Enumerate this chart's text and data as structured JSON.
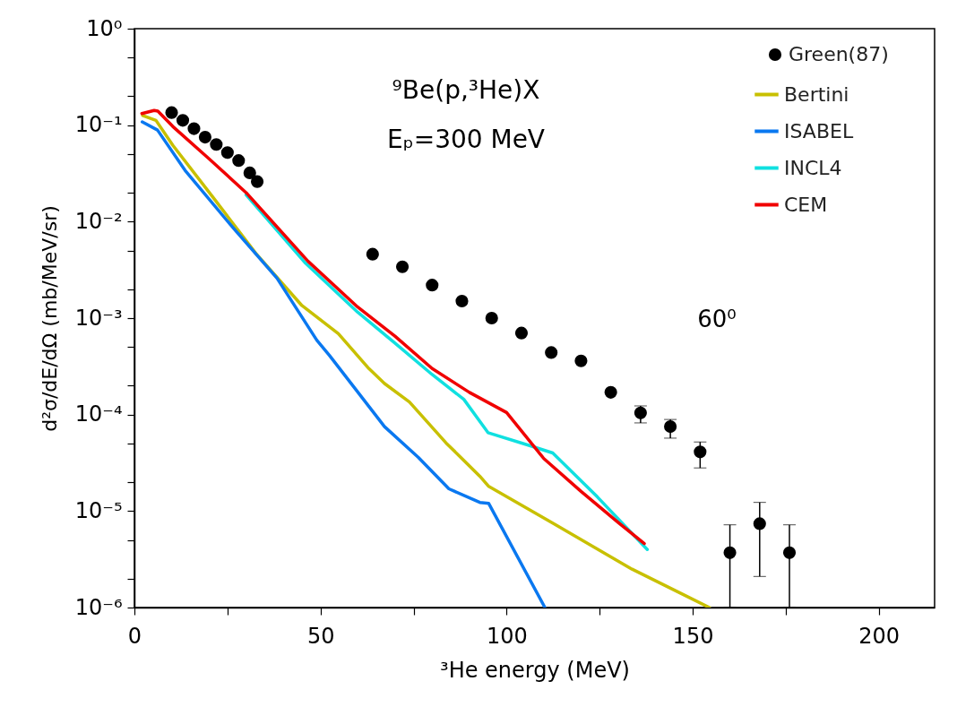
{
  "chart_data": {
    "type": "line",
    "xlabel": "³He energy (MeV)",
    "ylabel": "d²σ/dE/dΩ (mb/MeV/sr)",
    "annotations": [
      "⁹Be(p,³He)X",
      "Eₚ=300 MeV",
      "60⁰"
    ],
    "log": "y",
    "xlim": [
      0,
      215
    ],
    "xticks": [
      0,
      {
        "value": 25,
        "label": null
      },
      50,
      {
        "value": 75,
        "label": null
      },
      100,
      {
        "value": 125,
        "label": null
      },
      150,
      {
        "value": 175,
        "label": null
      },
      200
    ],
    "ylim": [
      1e-06,
      1
    ],
    "yticks": [
      {
        "value": 1,
        "label": "10⁰"
      },
      {
        "value": 0.5,
        "label": null
      },
      {
        "value": 0.2,
        "label": null
      },
      {
        "value": 0.1,
        "label": "10⁻¹"
      },
      {
        "value": 0.05,
        "label": null
      },
      {
        "value": 0.02,
        "label": null
      },
      {
        "value": 0.01,
        "label": "10⁻²"
      },
      {
        "value": 0.005,
        "label": null
      },
      {
        "value": 0.002,
        "label": null
      },
      {
        "value": 0.001,
        "label": "10⁻³"
      },
      {
        "value": 0.0005,
        "label": null
      },
      {
        "value": 0.0002,
        "label": null
      },
      {
        "value": 0.0001,
        "label": "10⁻⁴"
      },
      {
        "value": 5e-05,
        "label": null
      },
      {
        "value": 2e-05,
        "label": null
      },
      {
        "value": 1e-05,
        "label": "10⁻⁵"
      },
      {
        "value": 5e-06,
        "label": null
      },
      {
        "value": 2e-06,
        "label": null
      },
      {
        "value": 1e-06,
        "label": "10⁻⁶"
      }
    ],
    "grid": false,
    "legend": "top right",
    "line_style": "solid",
    "series": [
      {
        "name": "Green(87)",
        "type": "scatter",
        "marker": "circle",
        "color": "#000000",
        "x": [
          10,
          13,
          16,
          19,
          22,
          25,
          28,
          31,
          33,
          64,
          72,
          80,
          88,
          96,
          104,
          112,
          120,
          128,
          136,
          144,
          152,
          160,
          168,
          176
        ],
        "values": [
          0.135,
          0.112,
          0.092,
          0.075,
          0.063,
          0.052,
          0.043,
          0.032,
          0.026,
          0.0046,
          0.0034,
          0.0022,
          0.0015,
          0.001,
          0.0007,
          0.00044,
          0.00036,
          0.00017,
          0.000104,
          7.5e-05,
          4.1e-05,
          3.7e-06,
          7.4e-06,
          3.7e-06
        ],
        "errors": [
          null,
          null,
          null,
          null,
          null,
          null,
          null,
          null,
          null,
          null,
          null,
          null,
          null,
          null,
          null,
          null,
          null,
          null,
          [
            8.2e-05,
            0.000123
          ],
          [
            5.7e-05,
            8.9e-05
          ],
          [
            2.8e-05,
            5.2e-05
          ],
          [
            1e-06,
            7.2e-06
          ],
          [
            2.1e-06,
            1.23e-05
          ],
          [
            1e-06,
            7.2e-06
          ]
        ]
      },
      {
        "name": "Bertini",
        "color": "#c8c000",
        "x": [
          2.2,
          5.8,
          10.3,
          21.8,
          32.6,
          45,
          54.8,
          63,
          67.2,
          73.9,
          83.7,
          92.8,
          95.2,
          112.7,
          133.7,
          154.5
        ],
        "values": [
          0.126,
          0.112,
          0.062,
          0.0165,
          0.0047,
          0.00135,
          0.00069,
          0.0003,
          0.00021,
          0.000135,
          5.1e-05,
          2.3e-05,
          1.8e-05,
          7.4e-06,
          2.5e-06,
          1e-06
        ]
      },
      {
        "name": "ISABEL",
        "color": "#0a78f0",
        "x": [
          2.1,
          6.2,
          13.6,
          26,
          38.3,
          49,
          52.4,
          67.2,
          76.3,
          84.5,
          92.8,
          95.2,
          110.3
        ],
        "values": [
          0.108,
          0.089,
          0.034,
          0.0091,
          0.0026,
          0.00059,
          0.00041,
          7.5e-05,
          3.6e-05,
          1.7e-05,
          1.23e-05,
          1.2e-05,
          1e-06
        ]
      },
      {
        "name": "INCL4",
        "color": "#10e0e0",
        "x": [
          30,
          46,
          60,
          70,
          80,
          88.5,
          95,
          106,
          112.4,
          124.4,
          137.8
        ],
        "values": [
          0.019,
          0.0037,
          0.00115,
          0.00055,
          0.00026,
          0.000144,
          6.5e-05,
          4.8e-05,
          4e-05,
          1.4e-05,
          4e-06
        ]
      },
      {
        "name": "CEM",
        "color": "#f00000",
        "x": [
          2,
          5.3,
          6.3,
          10.3,
          20,
          30,
          46.6,
          60,
          70,
          80,
          90,
          100,
          110,
          120,
          130,
          137
        ],
        "values": [
          0.132,
          0.142,
          0.14,
          0.097,
          0.045,
          0.02,
          0.0039,
          0.0013,
          0.00065,
          0.0003,
          0.00017,
          0.000105,
          3.5e-05,
          1.6e-05,
          7.6e-06,
          4.6e-06
        ]
      }
    ]
  }
}
